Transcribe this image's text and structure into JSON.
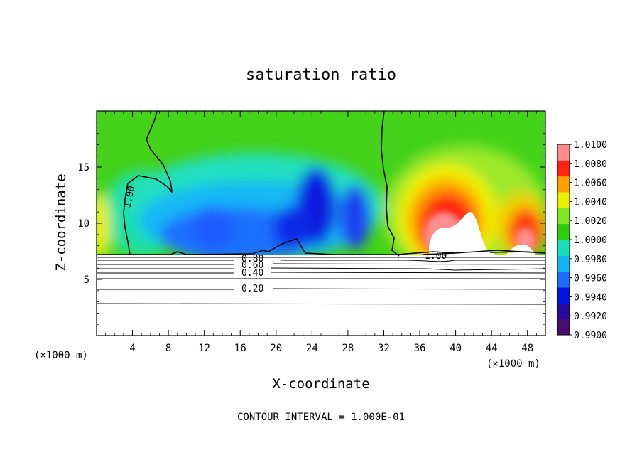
{
  "chart_data": {
    "type": "heatmap",
    "title": "saturation ratio",
    "xlabel": "X-coordinate",
    "ylabel": "Z-coordinate",
    "x_unit_left": "(×1000 m)",
    "x_unit_right": "(×1000 m)",
    "footer": "CONTOUR INTERVAL = 1.000E-01",
    "xlim": [
      0,
      50
    ],
    "ylim": [
      0,
      20
    ],
    "x_ticks": [
      4,
      8,
      12,
      16,
      20,
      24,
      28,
      32,
      36,
      40,
      44,
      48
    ],
    "x_tick_labels": [
      "4",
      "8",
      "12",
      "16",
      "20",
      "24",
      "28",
      "32",
      "36",
      "40",
      "44",
      "48"
    ],
    "y_ticks": [
      5,
      10,
      15
    ],
    "y_tick_labels": [
      "5",
      "10",
      "15"
    ],
    "colorbar": {
      "min": 0.99,
      "max": 1.01,
      "labels": [
        "1.0100",
        "1.0080",
        "1.0060",
        "1.0040",
        "1.0020",
        "1.0000",
        "0.9980",
        "0.9960",
        "0.9940",
        "0.9920",
        "0.9900"
      ],
      "colors": [
        "#4a0d6e",
        "#2a0a9e",
        "#0014e0",
        "#1e6cff",
        "#14b4f0",
        "#18e0b6",
        "#2ccc10",
        "#7ce622",
        "#e8f000",
        "#ffa000",
        "#ff2410",
        "#ff8a8a"
      ]
    },
    "contour_labels": [
      "1.00",
      "1.00",
      "0.80",
      "0.60",
      "0.40",
      "0.20"
    ],
    "contour_lines_below": [
      {
        "label": "0.20",
        "z": 4.2
      },
      {
        "label": "0.40",
        "z": 5.7
      },
      {
        "label": "0.60",
        "z": 6.3
      },
      {
        "label": "0.80",
        "z": 6.7
      }
    ],
    "unsaturated_layer_top_z": 7.1
  }
}
